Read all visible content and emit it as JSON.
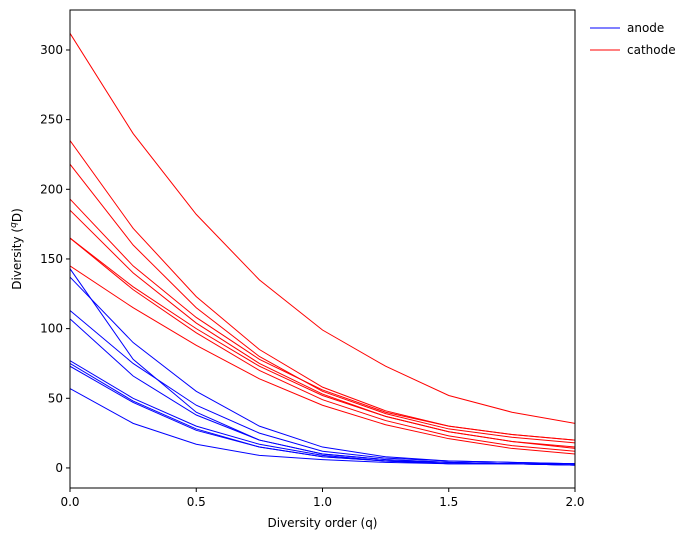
{
  "chart_data": {
    "type": "line",
    "xlabel": "Diversity order (q)",
    "ylabel": [
      "Diversity (",
      "q",
      "D)"
    ],
    "x": [
      0,
      0.25,
      0.5,
      0.75,
      1,
      1.25,
      1.5,
      1.75,
      2
    ],
    "xlim": [
      0,
      2
    ],
    "xticks": [
      {
        "value": 0,
        "label": "0.0"
      },
      {
        "value": 0.5,
        "label": "0.5"
      },
      {
        "value": 1,
        "label": "1.0"
      },
      {
        "value": 1.5,
        "label": "1.5"
      },
      {
        "value": 2,
        "label": "2.0"
      }
    ],
    "ylim": [
      -14.4,
      328.7
    ],
    "yticks": [
      0,
      50,
      100,
      150,
      200,
      250,
      300
    ],
    "legend": "outside-upper-right",
    "series": [
      {
        "name": "anode",
        "color": "#0000ff",
        "values": [
          [
            143,
            78,
            40,
            20,
            10,
            6,
            4,
            3,
            3
          ],
          [
            137,
            90,
            55,
            30,
            15,
            8,
            5,
            4,
            3
          ],
          [
            113,
            75,
            45,
            25,
            12,
            7,
            5,
            4,
            3
          ],
          [
            107,
            66,
            38,
            20,
            10,
            6,
            4,
            3,
            3
          ],
          [
            77,
            50,
            30,
            17,
            9,
            5,
            4,
            3,
            2
          ],
          [
            75,
            48,
            28,
            15,
            8,
            5,
            3,
            3,
            2
          ],
          [
            73,
            47,
            27,
            15,
            8,
            5,
            3,
            3,
            2
          ],
          [
            57,
            32,
            17,
            9,
            6,
            4,
            3,
            3,
            2
          ]
        ]
      },
      {
        "name": "cathode",
        "color": "#ff0000",
        "values": [
          [
            312,
            240,
            182,
            135,
            99,
            73,
            52,
            40,
            32
          ],
          [
            235,
            172,
            123,
            85,
            58,
            41,
            30,
            24,
            20
          ],
          [
            218,
            160,
            115,
            80,
            55,
            39,
            28,
            22,
            18
          ],
          [
            193,
            145,
            108,
            78,
            56,
            40,
            30,
            24,
            20
          ],
          [
            185,
            140,
            104,
            75,
            53,
            37,
            26,
            19,
            15
          ],
          [
            165,
            130,
            100,
            73,
            52,
            37,
            26,
            19,
            14
          ],
          [
            165,
            128,
            97,
            70,
            49,
            34,
            23,
            16,
            12
          ],
          [
            145,
            115,
            88,
            64,
            45,
            31,
            21,
            14,
            10
          ]
        ]
      }
    ]
  }
}
